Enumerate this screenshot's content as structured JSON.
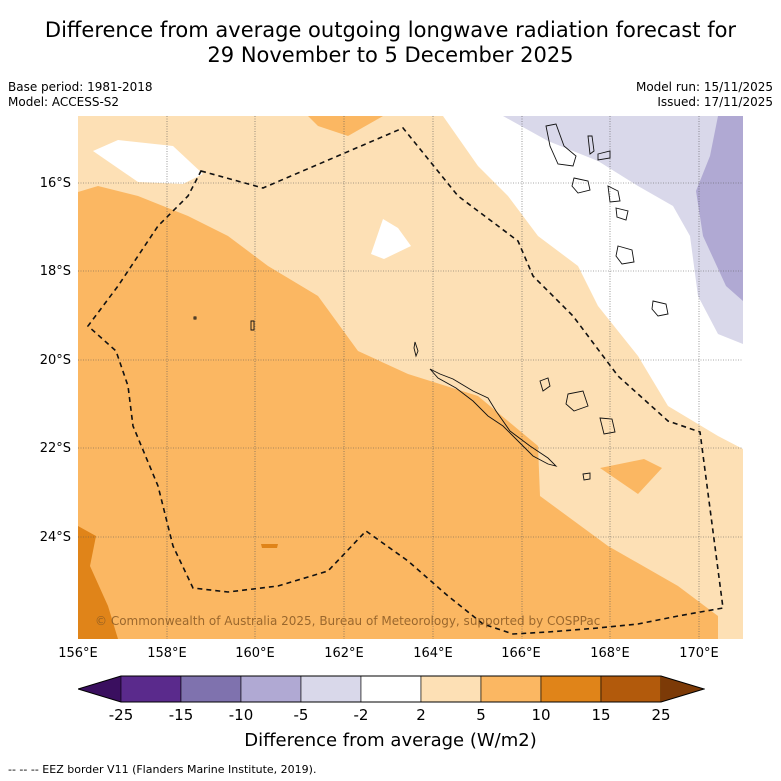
{
  "title_line1": "Difference from average outgoing longwave radiation forecast for",
  "title_line2": "29 November to 5 December 2025",
  "base_period": "Base period: 1981-2018",
  "model": "Model: ACCESS-S2",
  "model_run": "Model run: 15/11/2025",
  "issued": "Issued: 17/11/2025",
  "copyright": "© Commonwealth of Australia 2025, Bureau of Meteorology, supported by COSPPac",
  "lat_labels": [
    "16°S",
    "18°S",
    "20°S",
    "22°S",
    "24°S"
  ],
  "lon_labels": [
    "156°E",
    "158°E",
    "160°E",
    "162°E",
    "164°E",
    "166°E",
    "168°E",
    "170°E"
  ],
  "colorbar": {
    "ticks": [
      "-25",
      "-15",
      "-10",
      "-5",
      "-2",
      "2",
      "5",
      "10",
      "15",
      "25"
    ],
    "colors": [
      "#3a0f5f",
      "#5a2a8c",
      "#7f72ae",
      "#b0a9d3",
      "#d9d8ea",
      "#ffffff",
      "#fde0b5",
      "#fbb762",
      "#e08419",
      "#b25a0c",
      "#7c3a07"
    ],
    "title": "Difference from average (W/m2)"
  },
  "legend_text": "--  --  -- EEZ border V11 (Flanders Marine Institute, 2019)."
}
